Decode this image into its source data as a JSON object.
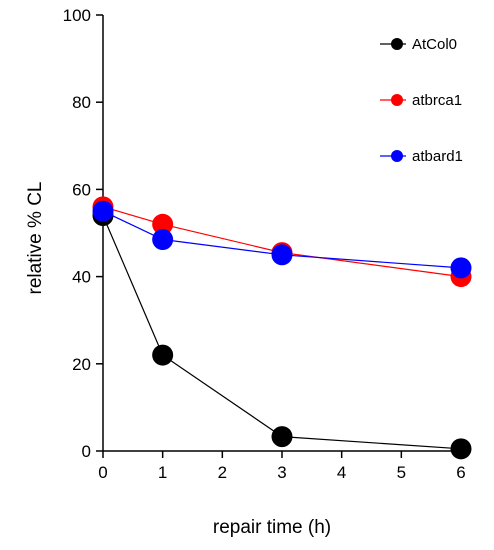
{
  "chart_data": {
    "type": "line",
    "title": "",
    "xlabel": "repair time (h)",
    "ylabel": "relative % CL",
    "xlim": [
      0,
      6
    ],
    "ylim": [
      0,
      100
    ],
    "xticks": [
      0,
      1,
      2,
      3,
      4,
      5,
      6
    ],
    "yticks": [
      0,
      20,
      40,
      60,
      80,
      100
    ],
    "grid": false,
    "legend_position": "top-right",
    "series": [
      {
        "name": "AtCol0",
        "color": "#000000",
        "x": [
          0,
          1,
          3,
          6
        ],
        "y": [
          54,
          22,
          3.3,
          0.5
        ]
      },
      {
        "name": "atbrca1",
        "color": "#ff0000",
        "x": [
          0,
          1,
          3,
          6
        ],
        "y": [
          56,
          52,
          45.5,
          40
        ]
      },
      {
        "name": "atbard1",
        "color": "#0000ff",
        "x": [
          0,
          1,
          3,
          6
        ],
        "y": [
          55,
          48.5,
          45,
          42
        ]
      }
    ]
  }
}
